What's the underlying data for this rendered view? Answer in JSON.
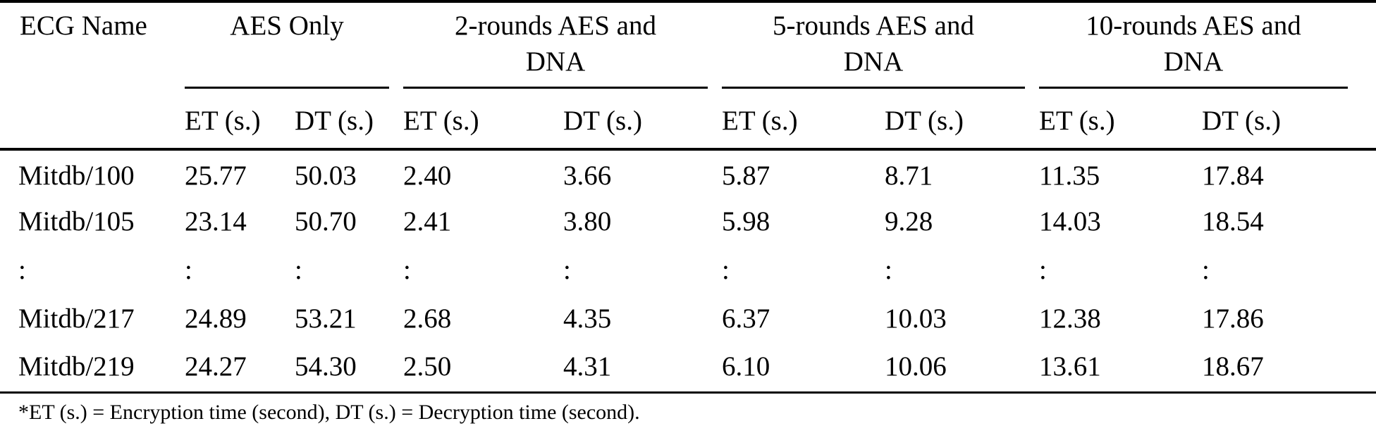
{
  "table": {
    "col0_header": "ECG Name",
    "groups": [
      {
        "line1": "AES Only",
        "line2": ""
      },
      {
        "line1": "2-rounds AES and",
        "line2": "DNA"
      },
      {
        "line1": "5-rounds AES and",
        "line2": "DNA"
      },
      {
        "line1": "10-rounds AES and",
        "line2": "DNA"
      }
    ],
    "subheaders": [
      "ET (s.)",
      "DT (s.)",
      "ET (s.)",
      "DT (s.)",
      "ET (s.)",
      "DT (s.)",
      "ET (s.)",
      "DT (s.)"
    ],
    "rows": [
      {
        "name": "Mitdb/100",
        "values": [
          "25.77",
          "50.03",
          "2.40",
          "3.66",
          "5.87",
          "8.71",
          "11.35",
          "17.84"
        ]
      },
      {
        "name": "Mitdb/105",
        "values": [
          "23.14",
          "50.70",
          "2.41",
          "3.80",
          "5.98",
          "9.28",
          "14.03",
          "18.54"
        ]
      },
      {
        "name": ":",
        "values": [
          ":",
          ":",
          ":",
          ":",
          ":",
          ":",
          ":",
          ":"
        ]
      },
      {
        "name": "Mitdb/217",
        "values": [
          "24.89",
          "53.21",
          "2.68",
          "4.35",
          "6.37",
          "10.03",
          "12.38",
          "17.86"
        ]
      },
      {
        "name": "Mitdb/219",
        "values": [
          "24.27",
          "54.30",
          "2.50",
          "4.31",
          "6.10",
          "10.06",
          "13.61",
          "18.67"
        ]
      }
    ],
    "footnote": "*ET (s.) = Encryption time (second), DT (s.) = Decryption time (second)."
  },
  "colors": {
    "text": "#000000",
    "rule": "#000000",
    "background": "#ffffff"
  }
}
